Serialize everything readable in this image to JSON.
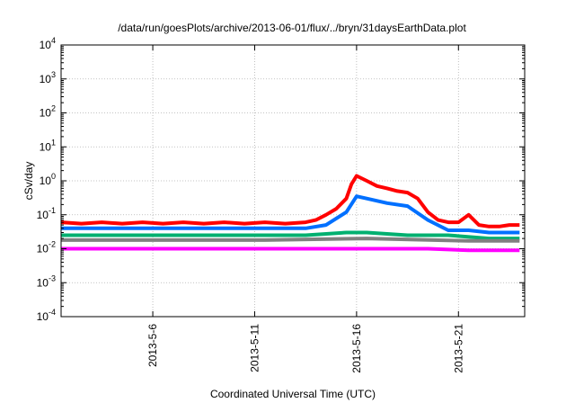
{
  "chart_data": {
    "type": "line",
    "title": "/data/run/goesPlots/archive/2013-06-01/flux/../bryn/31daysEarthData.plot",
    "xlabel": "Coordinated Universal Time (UTC)",
    "ylabel": "cSv/day",
    "yscale": "log",
    "ylim": [
      0.0001,
      10000
    ],
    "xlim": [
      "2013-05-01T12:00",
      "2013-05-24T06:00"
    ],
    "grid": true,
    "x_ticks": [
      "2013-5-6",
      "2013-5-11",
      "2013-5-16",
      "2013-5-21"
    ],
    "y_ticks": [
      {
        "base": "10",
        "exp": "-4",
        "value": 0.0001
      },
      {
        "base": "10",
        "exp": "-3",
        "value": 0.001
      },
      {
        "base": "10",
        "exp": "-2",
        "value": 0.01
      },
      {
        "base": "10",
        "exp": "-1",
        "value": 0.1
      },
      {
        "base": "10",
        "exp": "0",
        "value": 1
      },
      {
        "base": "10",
        "exp": "1",
        "value": 10
      },
      {
        "base": "10",
        "exp": "2",
        "value": 100
      },
      {
        "base": "10",
        "exp": "3",
        "value": 1000
      },
      {
        "base": "10",
        "exp": "4",
        "value": 10000
      }
    ],
    "series": [
      {
        "color": "#ff0000",
        "x": [
          "2013-05-01T12:00",
          "2013-05-02T12:00",
          "2013-05-03T12:00",
          "2013-05-04T12:00",
          "2013-05-05T12:00",
          "2013-05-06T12:00",
          "2013-05-07T12:00",
          "2013-05-08T12:00",
          "2013-05-09T12:00",
          "2013-05-10T12:00",
          "2013-05-11T12:00",
          "2013-05-12T12:00",
          "2013-05-13T12:00",
          "2013-05-14T00:00",
          "2013-05-14T12:00",
          "2013-05-15T00:00",
          "2013-05-15T12:00",
          "2013-05-15T18:00",
          "2013-05-16T00:00",
          "2013-05-16T12:00",
          "2013-05-17T00:00",
          "2013-05-17T12:00",
          "2013-05-18T00:00",
          "2013-05-18T12:00",
          "2013-05-19T00:00",
          "2013-05-19T12:00",
          "2013-05-20T00:00",
          "2013-05-20T12:00",
          "2013-05-21T00:00",
          "2013-05-21T12:00",
          "2013-05-22T00:00",
          "2013-05-22T12:00",
          "2013-05-23T00:00",
          "2013-05-23T12:00",
          "2013-05-24T00:00"
        ],
        "values": [
          0.06,
          0.055,
          0.06,
          0.055,
          0.06,
          0.055,
          0.06,
          0.055,
          0.06,
          0.055,
          0.06,
          0.055,
          0.06,
          0.07,
          0.1,
          0.15,
          0.3,
          0.8,
          1.4,
          1.0,
          0.7,
          0.6,
          0.5,
          0.45,
          0.3,
          0.12,
          0.07,
          0.06,
          0.06,
          0.1,
          0.05,
          0.045,
          0.045,
          0.05,
          0.05
        ]
      },
      {
        "color": "#0070ff",
        "x": [
          "2013-05-01T12:00",
          "2013-05-03T12:00",
          "2013-05-05T12:00",
          "2013-05-07T12:00",
          "2013-05-09T12:00",
          "2013-05-11T12:00",
          "2013-05-13T12:00",
          "2013-05-14T12:00",
          "2013-05-15T12:00",
          "2013-05-16T00:00",
          "2013-05-16T12:00",
          "2013-05-17T12:00",
          "2013-05-18T12:00",
          "2013-05-19T12:00",
          "2013-05-20T12:00",
          "2013-05-21T12:00",
          "2013-05-22T12:00",
          "2013-05-23T12:00",
          "2013-05-24T00:00"
        ],
        "values": [
          0.04,
          0.04,
          0.04,
          0.04,
          0.04,
          0.04,
          0.04,
          0.05,
          0.12,
          0.35,
          0.3,
          0.22,
          0.18,
          0.07,
          0.035,
          0.035,
          0.03,
          0.03,
          0.03
        ]
      },
      {
        "color": "#00b070",
        "x": [
          "2013-05-01T12:00",
          "2013-05-04T12:00",
          "2013-05-07T12:00",
          "2013-05-10T12:00",
          "2013-05-13T12:00",
          "2013-05-15T12:00",
          "2013-05-16T12:00",
          "2013-05-18T12:00",
          "2013-05-20T12:00",
          "2013-05-22T12:00",
          "2013-05-24T00:00"
        ],
        "values": [
          0.025,
          0.025,
          0.025,
          0.025,
          0.025,
          0.03,
          0.03,
          0.025,
          0.025,
          0.02,
          0.02
        ]
      },
      {
        "color": "#808080",
        "x": [
          "2013-05-01T12:00",
          "2013-05-06T12:00",
          "2013-05-11T12:00",
          "2013-05-16T12:00",
          "2013-05-21T12:00",
          "2013-05-24T00:00"
        ],
        "values": [
          0.018,
          0.018,
          0.018,
          0.02,
          0.017,
          0.017
        ]
      },
      {
        "color": "#ff00ff",
        "x": [
          "2013-05-01T12:00",
          "2013-05-03T12:00",
          "2013-05-05T12:00",
          "2013-05-07T12:00",
          "2013-05-09T12:00",
          "2013-05-11T12:00",
          "2013-05-13T12:00",
          "2013-05-15T12:00",
          "2013-05-17T12:00",
          "2013-05-19T12:00",
          "2013-05-21T12:00",
          "2013-05-23T12:00",
          "2013-05-24T00:00"
        ],
        "values": [
          0.01,
          0.01,
          0.01,
          0.01,
          0.01,
          0.01,
          0.01,
          0.01,
          0.01,
          0.01,
          0.009,
          0.009,
          0.009
        ]
      }
    ]
  }
}
